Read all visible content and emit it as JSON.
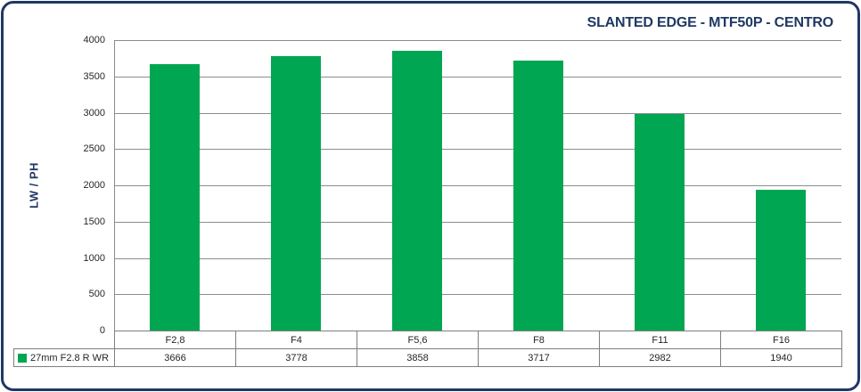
{
  "chart_data": {
    "type": "bar",
    "title": "SLANTED EDGE - MTF50P - CENTRO",
    "ylabel": "LW / PH",
    "xlabel": "",
    "categories": [
      "F2,8",
      "F4",
      "F5,6",
      "F8",
      "F11",
      "F16"
    ],
    "series": [
      {
        "name": "27mm F2.8 R WR",
        "values": [
          3666,
          3778,
          3858,
          3717,
          2982,
          1940
        ]
      }
    ],
    "ylim": [
      0,
      4000
    ],
    "ytick_step": 500,
    "yticks": [
      "4000",
      "3500",
      "3000",
      "2500",
      "2000",
      "1500",
      "1000",
      "500",
      "0"
    ],
    "grid": true,
    "legend_position": "bottom-left-table",
    "data_table_shown": true
  },
  "colors": {
    "bar_green": "#00A651",
    "title_navy": "#1F3864",
    "gridline_grey": "#8C8C8C",
    "table_border_grey": "#7F7F7F",
    "text_dark": "#262626",
    "background": "#FFFFFF"
  }
}
